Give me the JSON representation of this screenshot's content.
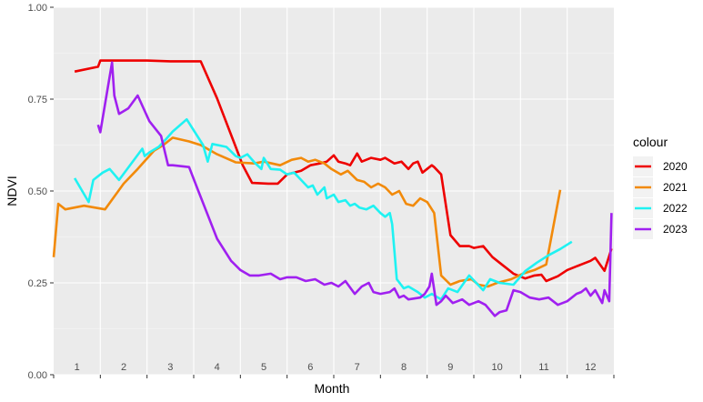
{
  "chart_data": {
    "type": "line",
    "title": "",
    "xlabel": "Month",
    "ylabel": "NDVI",
    "xlim": [
      0.5,
      12.5
    ],
    "ylim": [
      0,
      1
    ],
    "y_ticks": [
      0.0,
      0.25,
      0.5,
      0.75,
      1.0
    ],
    "y_tick_labels": [
      "0.00",
      "0.25",
      "0.50",
      "0.75",
      "1.00"
    ],
    "x_ticks": [
      1,
      2,
      3,
      4,
      5,
      6,
      7,
      8,
      9,
      10,
      11,
      12
    ],
    "x_tick_labels": [
      "1",
      "2",
      "3",
      "4",
      "5",
      "6",
      "7",
      "8",
      "9",
      "10",
      "11",
      "12"
    ],
    "grid": true,
    "legend": {
      "title": "colour",
      "placement": "right"
    },
    "series": [
      {
        "name": "2020",
        "color": "#ee0000",
        "x": [
          0.95,
          1.45,
          1.5,
          2.5,
          3.0,
          3.6,
          3.65,
          4.0,
          4.4,
          4.55,
          4.75,
          5.1,
          5.3,
          5.5,
          5.8,
          6.0,
          6.2,
          6.35,
          6.5,
          6.6,
          6.75,
          6.85,
          7.0,
          7.1,
          7.3,
          7.5,
          7.6,
          7.8,
          7.95,
          8.1,
          8.2,
          8.3,
          8.4,
          8.6,
          8.65,
          8.8,
          9.0,
          9.2,
          9.4,
          9.5,
          9.7,
          9.9,
          10.1,
          10.2,
          10.35,
          10.6,
          10.8,
          10.95,
          11.05,
          11.3,
          11.5,
          11.8,
          12.0,
          12.1,
          12.3,
          12.45
        ],
        "y": [
          0.825,
          0.838,
          0.855,
          0.855,
          0.853,
          0.853,
          0.853,
          0.752,
          0.62,
          0.57,
          0.522,
          0.52,
          0.52,
          0.545,
          0.555,
          0.57,
          0.575,
          0.58,
          0.597,
          0.58,
          0.575,
          0.57,
          0.602,
          0.58,
          0.59,
          0.585,
          0.59,
          0.575,
          0.58,
          0.56,
          0.575,
          0.58,
          0.55,
          0.57,
          0.565,
          0.545,
          0.38,
          0.35,
          0.35,
          0.345,
          0.35,
          0.32,
          0.3,
          0.29,
          0.275,
          0.262,
          0.27,
          0.272,
          0.255,
          0.268,
          0.285,
          0.3,
          0.31,
          0.318,
          0.283,
          0.343
        ]
      },
      {
        "name": "2021",
        "color": "#f28a0a",
        "x": [
          0.5,
          0.6,
          0.75,
          1.15,
          1.6,
          2.0,
          2.3,
          2.65,
          2.85,
          3.05,
          3.4,
          3.65,
          4.0,
          4.4,
          4.8,
          5.0,
          5.35,
          5.6,
          5.8,
          5.95,
          6.1,
          6.3,
          6.45,
          6.65,
          6.8,
          7.0,
          7.15,
          7.3,
          7.45,
          7.6,
          7.75,
          7.9,
          8.05,
          8.2,
          8.35,
          8.5,
          8.65,
          8.8,
          9.0,
          9.2,
          9.45,
          9.6,
          9.8,
          10.0,
          10.3,
          10.55,
          10.8,
          11.05,
          11.35
        ],
        "y": [
          0.32,
          0.465,
          0.45,
          0.46,
          0.45,
          0.52,
          0.56,
          0.61,
          0.625,
          0.645,
          0.635,
          0.625,
          0.6,
          0.578,
          0.575,
          0.58,
          0.57,
          0.585,
          0.59,
          0.58,
          0.585,
          0.575,
          0.56,
          0.545,
          0.555,
          0.53,
          0.525,
          0.51,
          0.52,
          0.51,
          0.49,
          0.5,
          0.465,
          0.46,
          0.48,
          0.47,
          0.44,
          0.27,
          0.245,
          0.255,
          0.26,
          0.245,
          0.24,
          0.25,
          0.26,
          0.275,
          0.285,
          0.3,
          0.503
        ]
      },
      {
        "name": "2022",
        "color": "#1ff2f2",
        "x": [
          0.95,
          1.25,
          1.35,
          1.55,
          1.7,
          1.9,
          2.4,
          2.45,
          2.55,
          2.75,
          2.9,
          3.05,
          3.35,
          3.7,
          3.8,
          3.9,
          4.2,
          4.4,
          4.5,
          4.65,
          4.8,
          4.95,
          5.0,
          5.15,
          5.35,
          5.5,
          5.65,
          5.8,
          5.95,
          6.05,
          6.15,
          6.3,
          6.35,
          6.5,
          6.6,
          6.75,
          6.85,
          6.95,
          7.05,
          7.2,
          7.35,
          7.5,
          7.6,
          7.7,
          7.75,
          7.85,
          8.0,
          8.1,
          8.3,
          8.45,
          8.6,
          8.8,
          8.95,
          9.15,
          9.4,
          9.55,
          9.7,
          9.85,
          10.05,
          10.35,
          10.6,
          10.85,
          11.1,
          11.35,
          11.6
        ],
        "y": [
          0.535,
          0.47,
          0.53,
          0.55,
          0.56,
          0.53,
          0.615,
          0.595,
          0.605,
          0.62,
          0.64,
          0.662,
          0.695,
          0.625,
          0.58,
          0.628,
          0.62,
          0.595,
          0.59,
          0.6,
          0.578,
          0.56,
          0.59,
          0.56,
          0.558,
          0.545,
          0.55,
          0.53,
          0.51,
          0.515,
          0.49,
          0.51,
          0.48,
          0.49,
          0.47,
          0.475,
          0.46,
          0.465,
          0.455,
          0.45,
          0.46,
          0.44,
          0.43,
          0.44,
          0.41,
          0.26,
          0.235,
          0.24,
          0.225,
          0.21,
          0.22,
          0.205,
          0.235,
          0.225,
          0.27,
          0.25,
          0.23,
          0.26,
          0.25,
          0.245,
          0.282,
          0.305,
          0.325,
          0.342,
          0.362
        ]
      },
      {
        "name": "2023",
        "color": "#a020f0",
        "x": [
          1.45,
          1.5,
          1.75,
          1.8,
          1.9,
          2.1,
          2.3,
          2.55,
          2.8,
          2.95,
          3.05,
          3.4,
          3.6,
          4.0,
          4.3,
          4.5,
          4.7,
          4.9,
          5.15,
          5.35,
          5.5,
          5.7,
          5.9,
          6.1,
          6.3,
          6.45,
          6.6,
          6.75,
          6.95,
          7.1,
          7.25,
          7.35,
          7.5,
          7.7,
          7.8,
          7.9,
          8.0,
          8.1,
          8.35,
          8.45,
          8.55,
          8.6,
          8.7,
          8.8,
          8.9,
          9.05,
          9.25,
          9.4,
          9.6,
          9.75,
          9.95,
          10.05,
          10.2,
          10.35,
          10.5,
          10.7,
          10.9,
          11.1,
          11.3,
          11.5,
          11.7,
          11.8,
          11.9,
          12.0,
          12.1,
          12.25,
          12.3,
          12.4,
          12.45
        ],
        "y": [
          0.68,
          0.66,
          0.85,
          0.76,
          0.71,
          0.725,
          0.76,
          0.69,
          0.65,
          0.57,
          0.57,
          0.565,
          0.5,
          0.37,
          0.31,
          0.285,
          0.27,
          0.27,
          0.275,
          0.26,
          0.265,
          0.265,
          0.255,
          0.26,
          0.245,
          0.25,
          0.24,
          0.255,
          0.22,
          0.24,
          0.25,
          0.225,
          0.22,
          0.225,
          0.235,
          0.21,
          0.215,
          0.205,
          0.21,
          0.22,
          0.24,
          0.275,
          0.19,
          0.2,
          0.215,
          0.195,
          0.205,
          0.19,
          0.2,
          0.19,
          0.16,
          0.17,
          0.175,
          0.23,
          0.225,
          0.21,
          0.205,
          0.21,
          0.19,
          0.2,
          0.22,
          0.225,
          0.235,
          0.215,
          0.23,
          0.195,
          0.23,
          0.2,
          0.44
        ]
      }
    ]
  }
}
